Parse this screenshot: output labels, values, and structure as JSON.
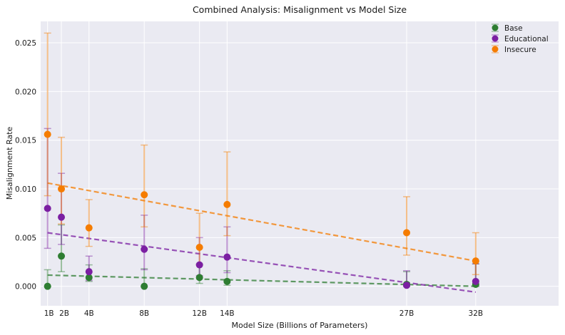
{
  "chart_data": {
    "type": "scatter",
    "title": "Combined Analysis: Misalignment vs Model Size",
    "xlabel": "Model Size (Billions of Parameters)",
    "ylabel": "Misalignment Rate",
    "xlim": [
      0.5,
      38
    ],
    "ylim": [
      -0.002,
      0.0272
    ],
    "grid": true,
    "legend_position": "top-right",
    "x_ticks": [
      {
        "value": 1,
        "label": "1B"
      },
      {
        "value": 2,
        "label": "2B"
      },
      {
        "value": 4,
        "label": "4B"
      },
      {
        "value": 8,
        "label": "8B"
      },
      {
        "value": 12,
        "label": "12B"
      },
      {
        "value": 14,
        "label": "14B"
      },
      {
        "value": 27,
        "label": "27B"
      },
      {
        "value": 32,
        "label": "32B"
      }
    ],
    "y_ticks": [
      {
        "value": 0.0,
        "label": "0.000"
      },
      {
        "value": 0.005,
        "label": "0.005"
      },
      {
        "value": 0.01,
        "label": "0.010"
      },
      {
        "value": 0.015,
        "label": "0.015"
      },
      {
        "value": 0.02,
        "label": "0.020"
      },
      {
        "value": 0.025,
        "label": "0.025"
      }
    ],
    "series": [
      {
        "name": "Base",
        "color": "#2e7d32",
        "x": [
          1,
          2,
          4,
          8,
          12,
          14,
          27,
          32
        ],
        "y": [
          0.0,
          0.0031,
          0.0009,
          0.0,
          0.0009,
          0.0005,
          0.0002,
          0.0002
        ],
        "err_low": [
          0.0,
          0.0015,
          0.0005,
          0.0,
          0.0003,
          0.0001,
          0.0,
          0.0
        ],
        "err_high": [
          0.0017,
          0.0063,
          0.0022,
          0.0018,
          0.0023,
          0.0016,
          0.0015,
          0.0023
        ],
        "trend": [
          0.00115,
          0.0
        ]
      },
      {
        "name": "Educational",
        "color": "#7b1fa2",
        "x": [
          1,
          2,
          4,
          8,
          12,
          14,
          27,
          32
        ],
        "y": [
          0.008,
          0.0071,
          0.0015,
          0.0038,
          0.0022,
          0.003,
          0.0001,
          0.0005
        ],
        "err_low": [
          0.0039,
          0.0043,
          0.0006,
          0.0017,
          0.0011,
          0.0014,
          0.0,
          0.0
        ],
        "err_high": [
          0.0162,
          0.0116,
          0.0031,
          0.0073,
          0.005,
          0.0061,
          0.0016,
          0.0023
        ],
        "trend": [
          0.0055,
          -0.0006
        ]
      },
      {
        "name": "Insecure",
        "color": "#f57c00",
        "x": [
          1,
          2,
          4,
          8,
          12,
          14,
          27,
          32
        ],
        "y": [
          0.0156,
          0.01,
          0.006,
          0.0094,
          0.004,
          0.0084,
          0.0055,
          0.0026
        ],
        "err_low": [
          0.0093,
          0.0064,
          0.0041,
          0.0061,
          0.0022,
          0.0052,
          0.0032,
          0.0012
        ],
        "err_high": [
          0.026,
          0.0153,
          0.0089,
          0.0145,
          0.0075,
          0.0138,
          0.0092,
          0.0055
        ],
        "trend": [
          0.0106,
          0.0026
        ]
      }
    ]
  }
}
